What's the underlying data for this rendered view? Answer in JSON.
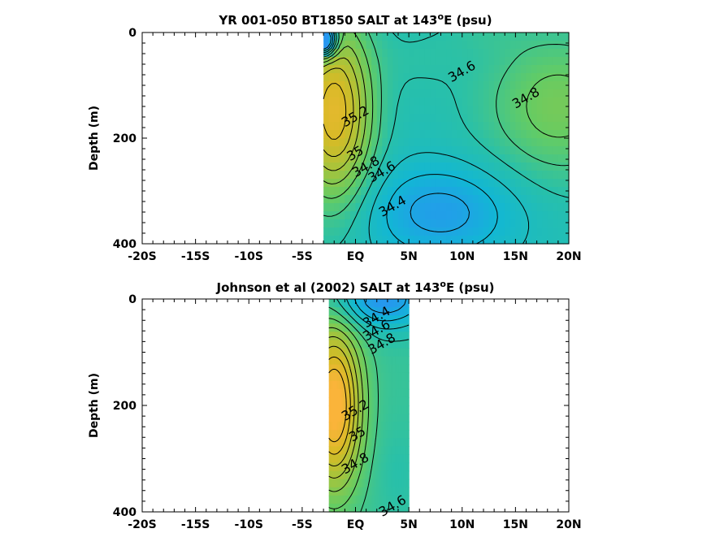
{
  "chart_data": [
    {
      "type": "heatmap",
      "title_parts": [
        "YR 001-050 BT1850 SALT at 143",
        "o",
        "E (psu)"
      ],
      "ylabel": "Depth (m)",
      "xlim": [
        -20,
        20
      ],
      "ylim": [
        0,
        400
      ],
      "y_inverted": true,
      "x_ticks": [
        -20,
        -15,
        -10,
        -5,
        0,
        5,
        10,
        15,
        20
      ],
      "x_tick_labels": [
        "-20S",
        "-15S",
        "-10S",
        "-5S",
        "EQ",
        "5N",
        "10N",
        "15N",
        "20N"
      ],
      "y_ticks": [
        0,
        200,
        400
      ],
      "y_tick_labels": [
        "0",
        "200",
        "400"
      ],
      "data_extent_x": [
        -3,
        20
      ],
      "contour_labels": [
        {
          "text": "34.6",
          "x": 10,
          "y": 75
        },
        {
          "text": "34.8",
          "x": 16,
          "y": 125
        },
        {
          "text": "35.2",
          "x": 0,
          "y": 160
        },
        {
          "text": "35",
          "x": 0,
          "y": 230
        },
        {
          "text": "34.8",
          "x": 1,
          "y": 255
        },
        {
          "text": "34.6",
          "x": 2.5,
          "y": 265
        },
        {
          "text": "34.4",
          "x": 3.5,
          "y": 330
        }
      ],
      "colorscale": "parula"
    },
    {
      "type": "heatmap",
      "title_parts": [
        "Johnson et al (2002) SALT at 143",
        "o",
        "E (psu)"
      ],
      "ylabel": "Depth (m)",
      "xlim": [
        -20,
        20
      ],
      "ylim": [
        0,
        400
      ],
      "y_inverted": true,
      "x_ticks": [
        -20,
        -15,
        -10,
        -5,
        0,
        5,
        10,
        15,
        20
      ],
      "x_tick_labels": [
        "-20S",
        "-15S",
        "-10S",
        "-5S",
        "EQ",
        "5N",
        "10N",
        "15N",
        "20N"
      ],
      "y_ticks": [
        0,
        200,
        400
      ],
      "y_tick_labels": [
        "0",
        "200",
        "400"
      ],
      "data_extent_x": [
        -2.5,
        5
      ],
      "contour_labels": [
        {
          "text": "34.4",
          "x": 2,
          "y": 35
        },
        {
          "text": "34.6",
          "x": 2,
          "y": 60
        },
        {
          "text": "34.8",
          "x": 2.5,
          "y": 85
        },
        {
          "text": "35.2",
          "x": 0,
          "y": 210
        },
        {
          "text": "35",
          "x": 0.2,
          "y": 255
        },
        {
          "text": "34.8",
          "x": 0,
          "y": 310
        },
        {
          "text": "34.6",
          "x": 3.5,
          "y": 390
        }
      ],
      "colorscale": "parula"
    }
  ]
}
